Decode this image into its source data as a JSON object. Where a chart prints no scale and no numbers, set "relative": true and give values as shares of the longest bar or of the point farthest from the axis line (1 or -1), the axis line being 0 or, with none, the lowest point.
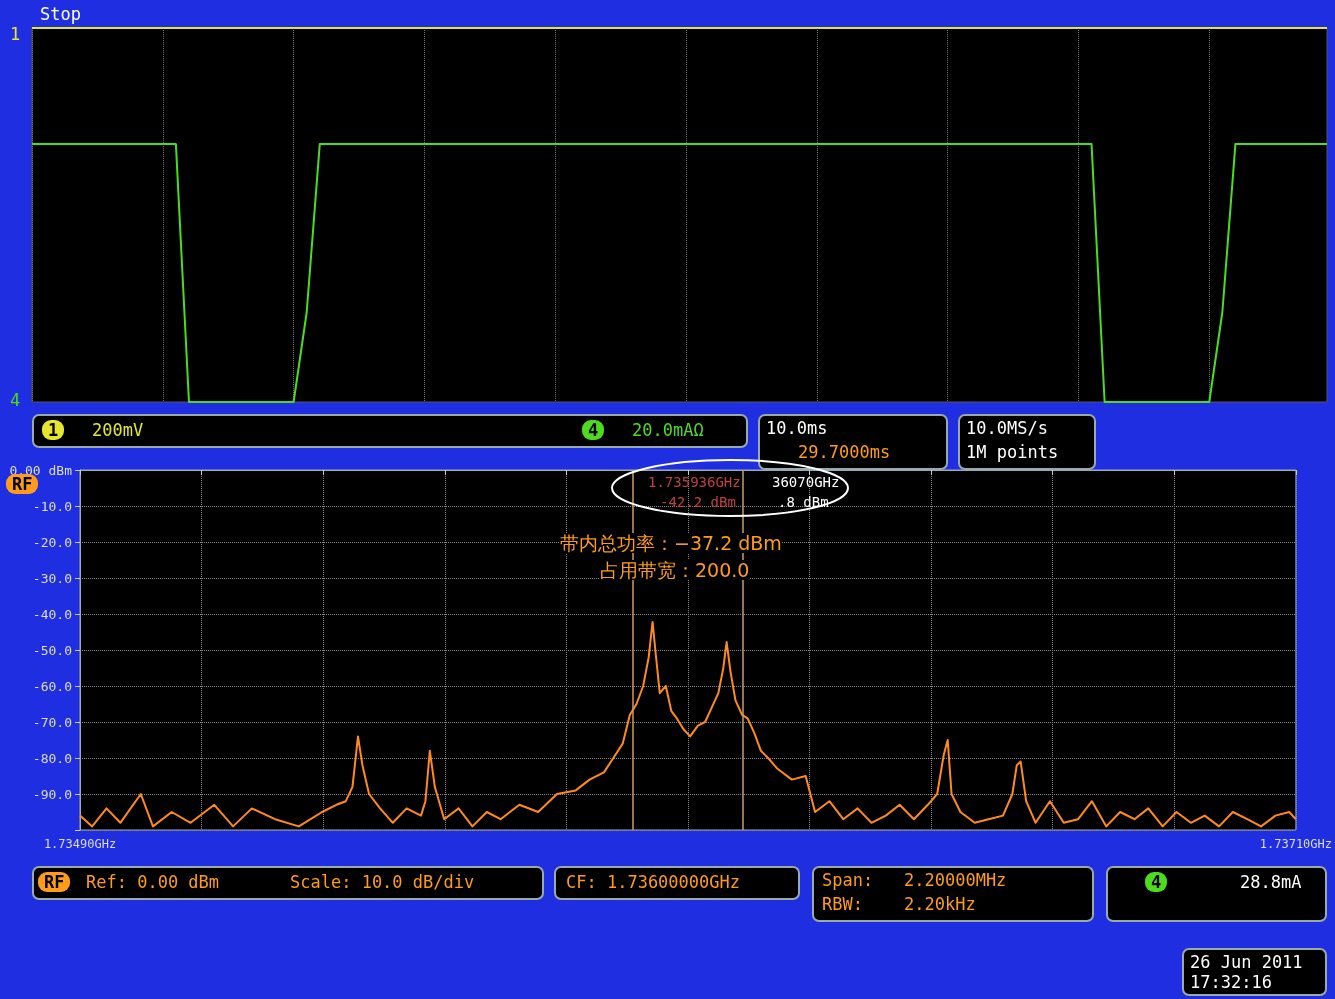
{
  "chart_data": [
    {
      "type": "line",
      "relative": true,
      "categories": [
        null,
        null,
        null,
        null,
        null,
        null,
        null,
        null,
        null,
        null,
        null,
        null,
        null,
        null,
        null,
        null,
        null,
        null,
        null,
        null,
        null,
        null,
        null,
        null,
        null,
        null,
        null,
        null,
        null,
        null,
        null,
        null,
        null,
        null,
        null,
        null,
        null,
        null,
        null,
        null,
        null,
        null,
        null,
        null,
        null,
        null,
        null,
        null,
        null,
        null,
        null,
        null,
        null,
        null,
        null,
        null,
        null,
        null,
        null,
        null,
        null,
        null,
        null,
        null,
        null,
        null,
        null,
        null,
        null,
        null,
        null,
        null,
        null,
        null,
        null,
        null,
        null,
        null,
        null,
        null,
        null,
        null,
        null,
        null,
        null,
        null,
        null,
        null,
        null,
        null,
        null,
        null,
        null,
        null,
        null,
        null,
        null,
        null,
        null,
        null
      ],
      "series": [
        {
          "color": "#e6e62e",
          "values": [
            1,
            1,
            1,
            1,
            1,
            1,
            1,
            1,
            1,
            1,
            1,
            1,
            1,
            1,
            1,
            1,
            1,
            1,
            1,
            1,
            1,
            1,
            1,
            1,
            1,
            1,
            1,
            1,
            1,
            1,
            1,
            1,
            1,
            1,
            1,
            1,
            1,
            1,
            1,
            1,
            1,
            1,
            1,
            1,
            1,
            1,
            1,
            1,
            1,
            1,
            1,
            1,
            1,
            1,
            1,
            1,
            1,
            1,
            1,
            1,
            1,
            1,
            1,
            1,
            1,
            1,
            1,
            1,
            1,
            1,
            1,
            1,
            1,
            1,
            1,
            1,
            1,
            1,
            1,
            1,
            1,
            1,
            1,
            1,
            1,
            1,
            1,
            1,
            1,
            1,
            1,
            1,
            1,
            1,
            1,
            1,
            1,
            1,
            1,
            1
          ]
        },
        {
          "color": "#4cdc1e",
          "values": [
            0.69,
            0.69,
            0.69,
            0.69,
            0.69,
            0.69,
            0.69,
            0.69,
            0.69,
            0.69,
            0.69,
            0.69,
            0,
            0,
            0,
            0,
            0,
            0,
            0,
            0,
            0,
            0.24,
            0.69,
            0.69,
            0.69,
            0.69,
            0.69,
            0.69,
            0.69,
            0.69,
            0.69,
            0.69,
            0.69,
            0.69,
            0.69,
            0.69,
            0.69,
            0.69,
            0.69,
            0.69,
            0.69,
            0.69,
            0.69,
            0.69,
            0.69,
            0.69,
            0.69,
            0.69,
            0.69,
            0.69,
            0.69,
            0.69,
            0.69,
            0.69,
            0.69,
            0.69,
            0.69,
            0.69,
            0.69,
            0.69,
            0.69,
            0.69,
            0.69,
            0.69,
            0.69,
            0.69,
            0.69,
            0.69,
            0.69,
            0.69,
            0.69,
            0.69,
            0.69,
            0.69,
            0.69,
            0.69,
            0.69,
            0.69,
            0.69,
            0.69,
            0.69,
            0.69,
            0,
            0,
            0,
            0,
            0,
            0,
            0,
            0,
            0,
            0.24,
            0.69,
            0.69,
            0.69,
            0.69,
            0.69,
            0.69,
            0.69,
            0.69
          ]
        }
      ],
      "grid": "x",
      "marker": "none",
      "annotations": [
        "Stop",
        "1",
        "4",
        "1",
        "200mV",
        "4",
        "20.0mAΩ",
        "10.0ms",
        "29.7000ms",
        "10.0MS/s",
        "1M points"
      ]
    },
    {
      "type": "line",
      "color": "#ff8a1e",
      "marker": "none",
      "grid": true,
      "x": [
        1.7349,
        1.734922,
        1.734948,
        1.734973,
        1.73501,
        1.735032,
        1.735066,
        1.7351,
        1.735143,
        1.735177,
        1.735211,
        1.735253,
        1.735296,
        1.735338,
        1.735364,
        1.735381,
        1.735393,
        1.735403,
        1.735411,
        1.735423,
        1.735443,
        1.735466,
        1.735491,
        1.735517,
        1.735525,
        1.735533,
        1.735542,
        1.735559,
        1.735585,
        1.73561,
        1.735636,
        1.735661,
        1.735695,
        1.735729,
        1.735763,
        1.735797,
        1.735822,
        1.735848,
        1.735865,
        1.735882,
        1.735895,
        1.735907,
        1.735919,
        1.735929,
        1.735936,
        1.735941,
        1.735949,
        1.73596,
        1.73597,
        1.73598,
        1.735992,
        1.736004,
        1.736018,
        1.736031,
        1.736043,
        1.736055,
        1.736064,
        1.73607,
        1.736077,
        1.736086,
        1.736098,
        1.736108,
        1.73612,
        1.736132,
        1.736145,
        1.736162,
        1.736188,
        1.736213,
        1.73623,
        1.736256,
        1.736281,
        1.736307,
        1.736332,
        1.736358,
        1.736383,
        1.736409,
        1.736434,
        1.736451,
        1.736463,
        1.73647,
        1.736477,
        1.736493,
        1.736519,
        1.736544,
        1.73657,
        1.736587,
        1.736595,
        1.736602,
        1.736612,
        1.736629,
        1.736655,
        1.73668,
        1.736706,
        1.736731,
        1.736757,
        1.736782,
        1.736808,
        1.736833,
        1.736859,
        1.736884,
        1.73691,
        1.736935,
        1.736961,
        1.736986,
        1.737012,
        1.737037,
        1.737063,
        1.737088,
        1.7371
      ],
      "values": [
        -96,
        -99,
        -94,
        -98,
        -90,
        -99,
        -95,
        -98,
        -93,
        -99,
        -94,
        -97,
        -99,
        -95,
        -93,
        -92,
        -88,
        -74,
        -82,
        -90,
        -94,
        -98,
        -94,
        -96,
        -92,
        -78,
        -88,
        -97,
        -94,
        -99,
        -95,
        -97,
        -93,
        -95,
        -90,
        -89,
        -86,
        -84,
        -80,
        -76,
        -68,
        -65,
        -60,
        -52,
        -42.2,
        -50,
        -62,
        -60,
        -67,
        -69,
        -72,
        -74,
        -71,
        -70,
        -66,
        -62,
        -55,
        -47.8,
        -56,
        -64,
        -68,
        -69,
        -73,
        -78,
        -80,
        -83,
        -86,
        -85,
        -95,
        -92,
        -97,
        -94,
        -98,
        -96,
        -93,
        -97,
        -93,
        -90,
        -79,
        -75,
        -90,
        -95,
        -98,
        -97,
        -96,
        -90,
        -82,
        -81,
        -92,
        -98,
        -92,
        -98,
        -97,
        -92,
        -99,
        -95,
        -97,
        -94,
        -99,
        -95,
        -98,
        -96,
        -99,
        -95,
        -97,
        -99,
        -96,
        -95,
        -97
      ],
      "xlim": [
        1.7349,
        1.7371
      ],
      "xticks": [
        {
          "value": 1.7349,
          "label": "1.73490GHz"
        },
        {
          "value": 1.73512,
          "label": null
        },
        {
          "value": 1.73534,
          "label": null
        },
        {
          "value": 1.73556,
          "label": null
        },
        {
          "value": 1.73578,
          "label": null
        },
        {
          "value": 1.736,
          "label": null
        },
        {
          "value": 1.73622,
          "label": null
        },
        {
          "value": 1.73644,
          "label": null
        },
        {
          "value": 1.73666,
          "label": null
        },
        {
          "value": 1.73688,
          "label": null
        },
        {
          "value": 1.7371,
          "label": "1.73710GHz"
        }
      ],
      "ylim": [
        -100,
        0
      ],
      "yticks": [
        {
          "value": 0,
          "label": "0.00 dBm"
        },
        {
          "value": -10,
          "label": "-10.0"
        },
        {
          "value": -20,
          "label": "-20.0"
        },
        {
          "value": -30,
          "label": "-30.0"
        },
        {
          "value": -40,
          "label": "-40.0"
        },
        {
          "value": -50,
          "label": "-50.0"
        },
        {
          "value": -60,
          "label": "-60.0"
        },
        {
          "value": -70,
          "label": "-70.0"
        },
        {
          "value": -80,
          "label": "-80.0"
        },
        {
          "value": -90,
          "label": "-90.0"
        },
        {
          "value": -100,
          "label": null
        }
      ],
      "ref_lines": [
        {
          "axis": "x",
          "value": 1.7359,
          "color": "#c8a060"
        },
        {
          "axis": "x",
          "value": 1.7361,
          "color": "#c8a060"
        }
      ],
      "annotations": [
        "RF",
        "带内总功率：−37.2 dBm",
        "占用带宽：200.0",
        "1.735936GHz",
        "-42.2 dBm",
        "36070GHz",
        ".8 dBm",
        "RF",
        "Ref: 0.00 dBm",
        "Scale: 10.0 dB/div",
        "CF: 1.73600000GHz",
        "Span:",
        "2.20000MHz",
        "RBW:",
        "2.20kHz",
        "4",
        "28.8mA",
        "26 Jun 2011",
        "17:32:16"
      ]
    }
  ]
}
